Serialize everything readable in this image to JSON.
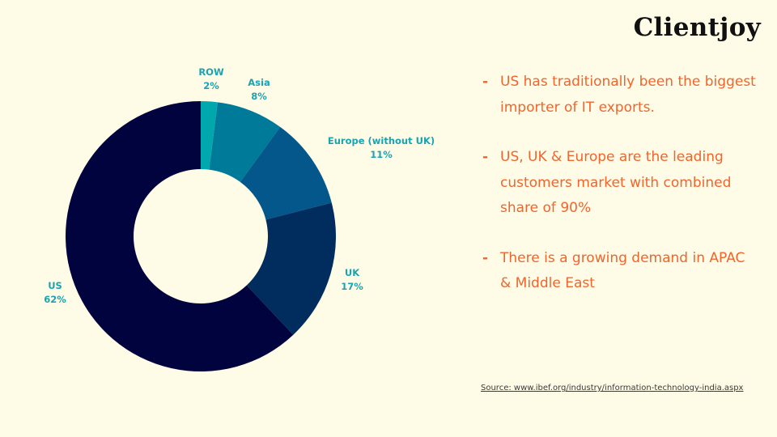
{
  "brand": {
    "logo_text": "Clientjoy"
  },
  "chart_data": {
    "type": "pie",
    "donut": true,
    "slices": [
      {
        "label": "ROW",
        "value": 2,
        "value_label": "2%",
        "color": "#00a8ae"
      },
      {
        "label": "Asia",
        "value": 8,
        "value_label": "8%",
        "color": "#007a99"
      },
      {
        "label": "Europe (without UK)",
        "value": 11,
        "value_label": "11%",
        "color": "#03578a"
      },
      {
        "label": "UK",
        "value": 17,
        "value_label": "17%",
        "color": "#012c5e"
      },
      {
        "label": "US",
        "value": 62,
        "value_label": "62%",
        "color": "#01033e"
      }
    ]
  },
  "bullets": [
    {
      "dash": "-",
      "text": "US has traditionally been the biggest importer of IT exports."
    },
    {
      "dash": "-",
      "text": "US, UK & Europe are the leading customers market with combined share of 90%"
    },
    {
      "dash": "-",
      "text": "There is a growing demand in APAC & Middle East"
    }
  ],
  "source": {
    "text": "Source: www.ibef.org/industry/information-technology-india.aspx"
  }
}
